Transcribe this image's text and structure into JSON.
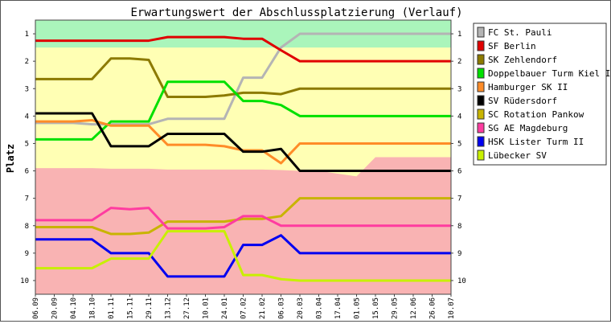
{
  "chart_data": {
    "type": "line",
    "title": "Erwartungswert der Abschlussplatzierung (Verlauf)",
    "xlabel": "",
    "ylabel": "Platz",
    "ylim": [
      10.5,
      0.5
    ],
    "y_inverted": true,
    "y_ticks": [
      1,
      2,
      3,
      4,
      5,
      6,
      7,
      8,
      9,
      10
    ],
    "grid": false,
    "legend_position": "right",
    "x": [
      "06.09",
      "20.09",
      "04.10",
      "18.10",
      "01.11",
      "15.11",
      "29.11",
      "13.12",
      "27.12",
      "10.01",
      "24.01",
      "07.02",
      "21.02",
      "06.03",
      "20.03",
      "03.04",
      "17.04",
      "01.05",
      "15.05",
      "29.05",
      "12.06",
      "26.06",
      "10.07"
    ],
    "zones": [
      {
        "name": "promotion",
        "color": "#aaf5bb"
      },
      {
        "name": "middle",
        "color": "#ffffb4"
      },
      {
        "name": "relegation",
        "color": "#f9b3b3"
      }
    ],
    "zone_boundaries": {
      "promotion_bottom": [
        1.5,
        1.5,
        1.5,
        1.5,
        1.5,
        1.5,
        1.5,
        1.5,
        1.5,
        1.5,
        1.5,
        1.5,
        1.5,
        1.5,
        1.5,
        1.5,
        1.5,
        1.5,
        1.5,
        1.5,
        1.5,
        1.5,
        1.5
      ],
      "relegation_top": [
        5.9,
        5.9,
        5.9,
        5.9,
        5.92,
        5.92,
        5.92,
        5.95,
        5.95,
        5.95,
        5.95,
        5.95,
        5.95,
        5.97,
        6.0,
        6.0,
        6.1,
        6.2,
        5.5,
        5.5,
        5.5,
        5.5,
        5.5
      ]
    },
    "series": [
      {
        "name": "FC St. Pauli",
        "color": "#b4b4b4",
        "values": [
          4.25,
          4.25,
          4.25,
          4.3,
          4.3,
          4.3,
          4.3,
          4.1,
          4.1,
          4.1,
          4.1,
          2.6,
          2.6,
          1.5,
          1.0,
          1.0,
          1.0,
          1.0,
          1.0,
          1.0,
          1.0,
          1.0,
          1.0
        ]
      },
      {
        "name": "SF Berlin",
        "color": "#e00000",
        "values": [
          1.25,
          1.25,
          1.25,
          1.25,
          1.25,
          1.25,
          1.25,
          1.12,
          1.12,
          1.12,
          1.12,
          1.18,
          1.18,
          1.6,
          2.0,
          2.0,
          2.0,
          2.0,
          2.0,
          2.0,
          2.0,
          2.0,
          2.0
        ]
      },
      {
        "name": "SK Zehlendorf",
        "color": "#8c7a00",
        "values": [
          2.65,
          2.65,
          2.65,
          2.65,
          1.9,
          1.9,
          1.95,
          3.3,
          3.3,
          3.3,
          3.25,
          3.15,
          3.15,
          3.2,
          3.0,
          3.0,
          3.0,
          3.0,
          3.0,
          3.0,
          3.0,
          3.0,
          3.0
        ]
      },
      {
        "name": "Doppelbauer Turm Kiel II",
        "color": "#00e000",
        "values": [
          4.85,
          4.85,
          4.85,
          4.85,
          4.2,
          4.2,
          4.2,
          2.75,
          2.75,
          2.75,
          2.75,
          3.45,
          3.45,
          3.6,
          4.0,
          4.0,
          4.0,
          4.0,
          4.0,
          4.0,
          4.0,
          4.0,
          4.0
        ]
      },
      {
        "name": "Hamburger SK II",
        "color": "#ff8c28",
        "values": [
          4.2,
          4.2,
          4.2,
          4.15,
          4.35,
          4.35,
          4.35,
          5.05,
          5.05,
          5.05,
          5.1,
          5.25,
          5.25,
          5.72,
          5.0,
          5.0,
          5.0,
          5.0,
          5.0,
          5.0,
          5.0,
          5.0,
          5.0
        ]
      },
      {
        "name": "SV Rüdersdorf",
        "color": "#000000",
        "values": [
          3.9,
          3.9,
          3.9,
          3.9,
          5.1,
          5.1,
          5.1,
          4.65,
          4.65,
          4.65,
          4.65,
          5.3,
          5.3,
          5.2,
          6.0,
          6.0,
          6.0,
          6.0,
          6.0,
          6.0,
          6.0,
          6.0,
          6.0
        ]
      },
      {
        "name": "SC Rotation Pankow",
        "color": "#c8b400",
        "values": [
          8.05,
          8.05,
          8.05,
          8.05,
          8.3,
          8.3,
          8.25,
          7.85,
          7.85,
          7.85,
          7.85,
          7.75,
          7.75,
          7.65,
          7.0,
          7.0,
          7.0,
          7.0,
          7.0,
          7.0,
          7.0,
          7.0,
          7.0
        ]
      },
      {
        "name": "SG AE Magdeburg",
        "color": "#ff3ca0",
        "values": [
          7.8,
          7.8,
          7.8,
          7.8,
          7.35,
          7.4,
          7.35,
          8.1,
          8.1,
          8.1,
          8.05,
          7.65,
          7.65,
          8.0,
          8.0,
          8.0,
          8.0,
          8.0,
          8.0,
          8.0,
          8.0,
          8.0,
          8.0
        ]
      },
      {
        "name": "HSK Lister Turm II",
        "color": "#0000f0",
        "values": [
          8.5,
          8.5,
          8.5,
          8.5,
          9.0,
          9.0,
          9.0,
          9.85,
          9.85,
          9.85,
          9.85,
          8.7,
          8.7,
          8.35,
          9.0,
          9.0,
          9.0,
          9.0,
          9.0,
          9.0,
          9.0,
          9.0,
          9.0
        ]
      },
      {
        "name": "Lübecker SV",
        "color": "#c8f000",
        "values": [
          9.55,
          9.55,
          9.55,
          9.55,
          9.2,
          9.2,
          9.2,
          8.2,
          8.2,
          8.2,
          8.2,
          9.8,
          9.8,
          9.95,
          10.0,
          10.0,
          10.0,
          10.0,
          10.0,
          10.0,
          10.0,
          10.0,
          10.0
        ]
      }
    ]
  }
}
